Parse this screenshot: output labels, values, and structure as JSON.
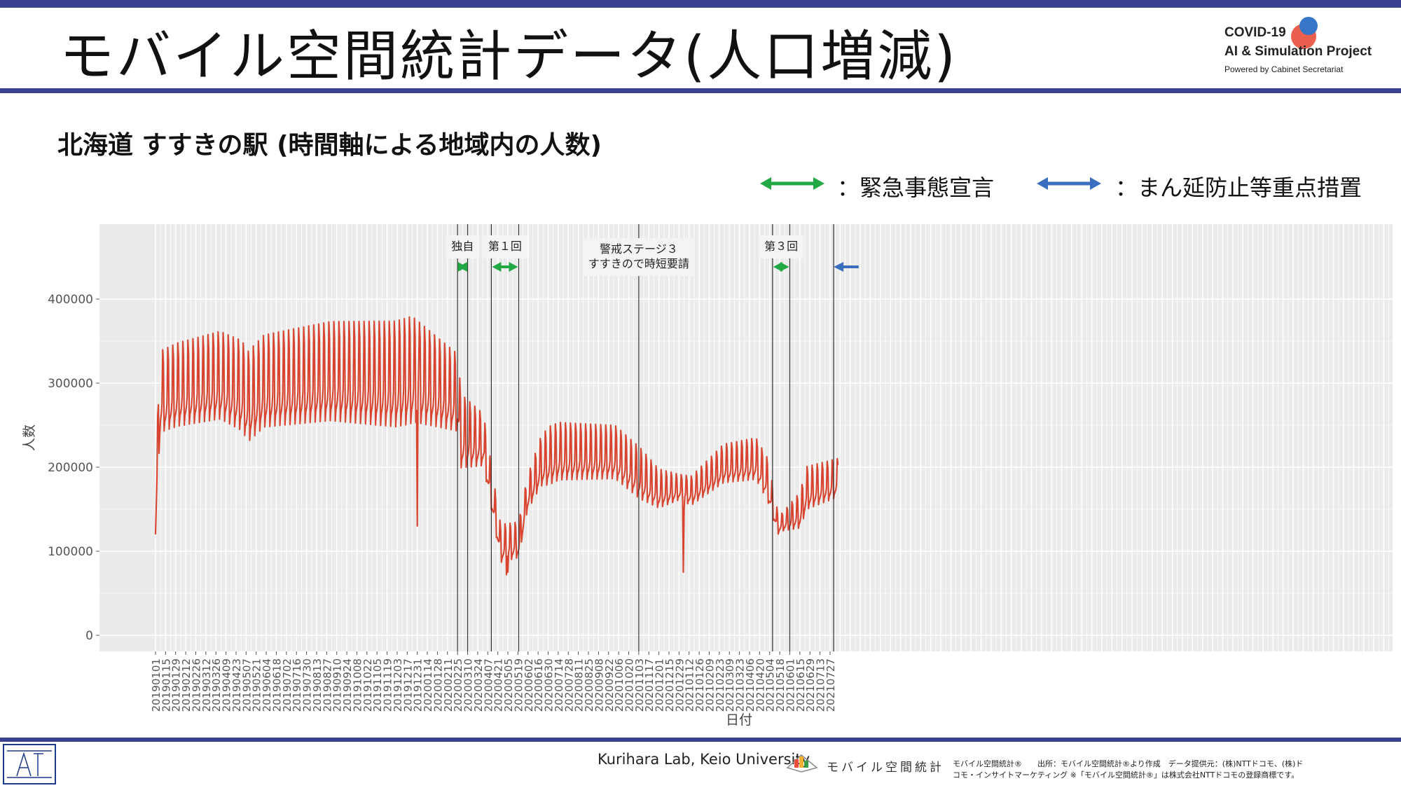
{
  "header": {
    "title": "モバイル空間統計データ(人口増減)",
    "logo": {
      "line1": "COVID-19",
      "line2": "AI & Simulation Project",
      "line3": "Powered by Cabinet Secretariat",
      "colors": {
        "red": "#e94e3c",
        "blue": "#3576c8"
      }
    }
  },
  "subtitle": "北海道 すすきの駅 (時間軸による地域内の人数)",
  "legend": [
    {
      "label": "：緊急事態宣言",
      "color": "#22a845"
    },
    {
      "label": "：まん延防止等重点措置",
      "color": "#3a6fbf"
    }
  ],
  "chart_data": {
    "type": "line",
    "xlabel": "日付",
    "ylabel": "人数",
    "ylim": [
      0,
      490000
    ],
    "yticks": [
      0,
      100000,
      200000,
      300000,
      400000
    ],
    "ytick_labels": [
      "0",
      "100000",
      "200000",
      "300000",
      "400000"
    ],
    "x_start": "20190101",
    "x_end": "20210807",
    "xtick_labels": [
      "20190101",
      "20190115",
      "20190129",
      "20190212",
      "20190226",
      "20190312",
      "20190326",
      "20190409",
      "20190423",
      "20190507",
      "20190521",
      "20190604",
      "20190618",
      "20190702",
      "20190716",
      "20190730",
      "20190813",
      "20190827",
      "20190910",
      "20190924",
      "20191008",
      "20191022",
      "20191105",
      "20191119",
      "20191203",
      "20191217",
      "20191231",
      "20200114",
      "20200128",
      "20200211",
      "20200225",
      "20200310",
      "20200324",
      "20200407",
      "20200421",
      "20200505",
      "20200519",
      "20200602",
      "20200616",
      "20200630",
      "20200714",
      "20200728",
      "20200811",
      "20200825",
      "20200908",
      "20200922",
      "20201006",
      "20201020",
      "20201103",
      "20201117",
      "20201201",
      "20201215",
      "20201229",
      "20210112",
      "20210126",
      "20210209",
      "20210223",
      "20210309",
      "20210323",
      "20210406",
      "20210420",
      "20210504",
      "20210518",
      "20210601",
      "20210615",
      "20210629",
      "20210713",
      "20210727"
    ],
    "series": [
      {
        "color": "#d8442f",
        "trend": [
          [
            "20190101",
            120000
          ],
          [
            "20190104",
            220000
          ],
          [
            "20190108",
            270000
          ],
          [
            "20190201",
            278000
          ],
          [
            "20190401",
            288000
          ],
          [
            "20190501",
            275000
          ],
          [
            "20190510",
            262000
          ],
          [
            "20190601",
            280000
          ],
          [
            "20190901",
            290000
          ],
          [
            "20191201",
            285000
          ],
          [
            "20191227",
            290000
          ],
          [
            "20200225",
            270000
          ],
          [
            "20200301",
            225000
          ],
          [
            "20200401",
            220000
          ],
          [
            "20200415",
            150000
          ],
          [
            "20200425",
            100000
          ],
          [
            "20200520",
            105000
          ],
          [
            "20200601",
            160000
          ],
          [
            "20200620",
            195000
          ],
          [
            "20200715",
            205000
          ],
          [
            "20201001",
            205000
          ],
          [
            "20201105",
            180000
          ],
          [
            "20201201",
            165000
          ],
          [
            "20201229",
            170000
          ],
          [
            "20210115",
            165000
          ],
          [
            "20210301",
            195000
          ],
          [
            "20210415",
            200000
          ],
          [
            "20210501",
            175000
          ],
          [
            "20210515",
            128000
          ],
          [
            "20210615",
            140000
          ],
          [
            "20210625",
            165000
          ],
          [
            "20210807",
            178000
          ]
        ],
        "amplitude": [
          [
            "20190101",
            0
          ],
          [
            "20190106",
            95000
          ],
          [
            "20191220",
            125000
          ],
          [
            "20200225",
            90000
          ],
          [
            "20200420",
            45000
          ],
          [
            "20200601",
            40000
          ],
          [
            "20200701",
            68000
          ],
          [
            "20201105",
            60000
          ],
          [
            "20201229",
            30000
          ],
          [
            "20210301",
            45000
          ],
          [
            "20210501",
            50000
          ],
          [
            "20210520",
            20000
          ],
          [
            "20210625",
            50000
          ],
          [
            "20210807",
            45000
          ]
        ],
        "dips": [
          {
            "date": "20191231",
            "value": 130000
          },
          {
            "date": "20200102",
            "value": 320000
          },
          {
            "date": "20210104",
            "value": 75000
          },
          {
            "date": "20210105",
            "value": 150000
          },
          {
            "date": "20200503",
            "value": 72000
          },
          {
            "date": "20200505",
            "value": 75000
          }
        ]
      }
    ],
    "vlines": [
      "20200225",
      "20200310",
      "20200412",
      "20200520",
      "20201103",
      "20210508",
      "20210601",
      "20210801"
    ],
    "annotations": [
      {
        "label": "独自",
        "from": "20200225",
        "to": "20200310",
        "color": "#22a845"
      },
      {
        "label": "第１回",
        "from": "20200412",
        "to": "20200520",
        "color": "#22a845"
      },
      {
        "label": "警戒ステージ３\nすすきので時短要請",
        "from": "20201103",
        "to": "20201103"
      },
      {
        "label": "第３回",
        "from": "20210508",
        "to": "20210601",
        "color": "#22a845"
      },
      {
        "label": "",
        "from": "20210801",
        "to": "20210827",
        "color": "#3a6fbf",
        "direction": "left"
      }
    ],
    "grid": true,
    "background": "#ebebeb"
  },
  "footer": {
    "lab": "Kurihara Lab, Keio University",
    "brand": "モバイル空間統計",
    "source_line1": "モバイル空間統計®　　出所：モバイル空間統計®より作成　データ提供元：(株)NTTドコモ、(株)ド",
    "source_line2": "コモ・インサイトマーケティング ※「モバイル空間統計®」は株式会社NTTドコモの登録商標です。"
  }
}
